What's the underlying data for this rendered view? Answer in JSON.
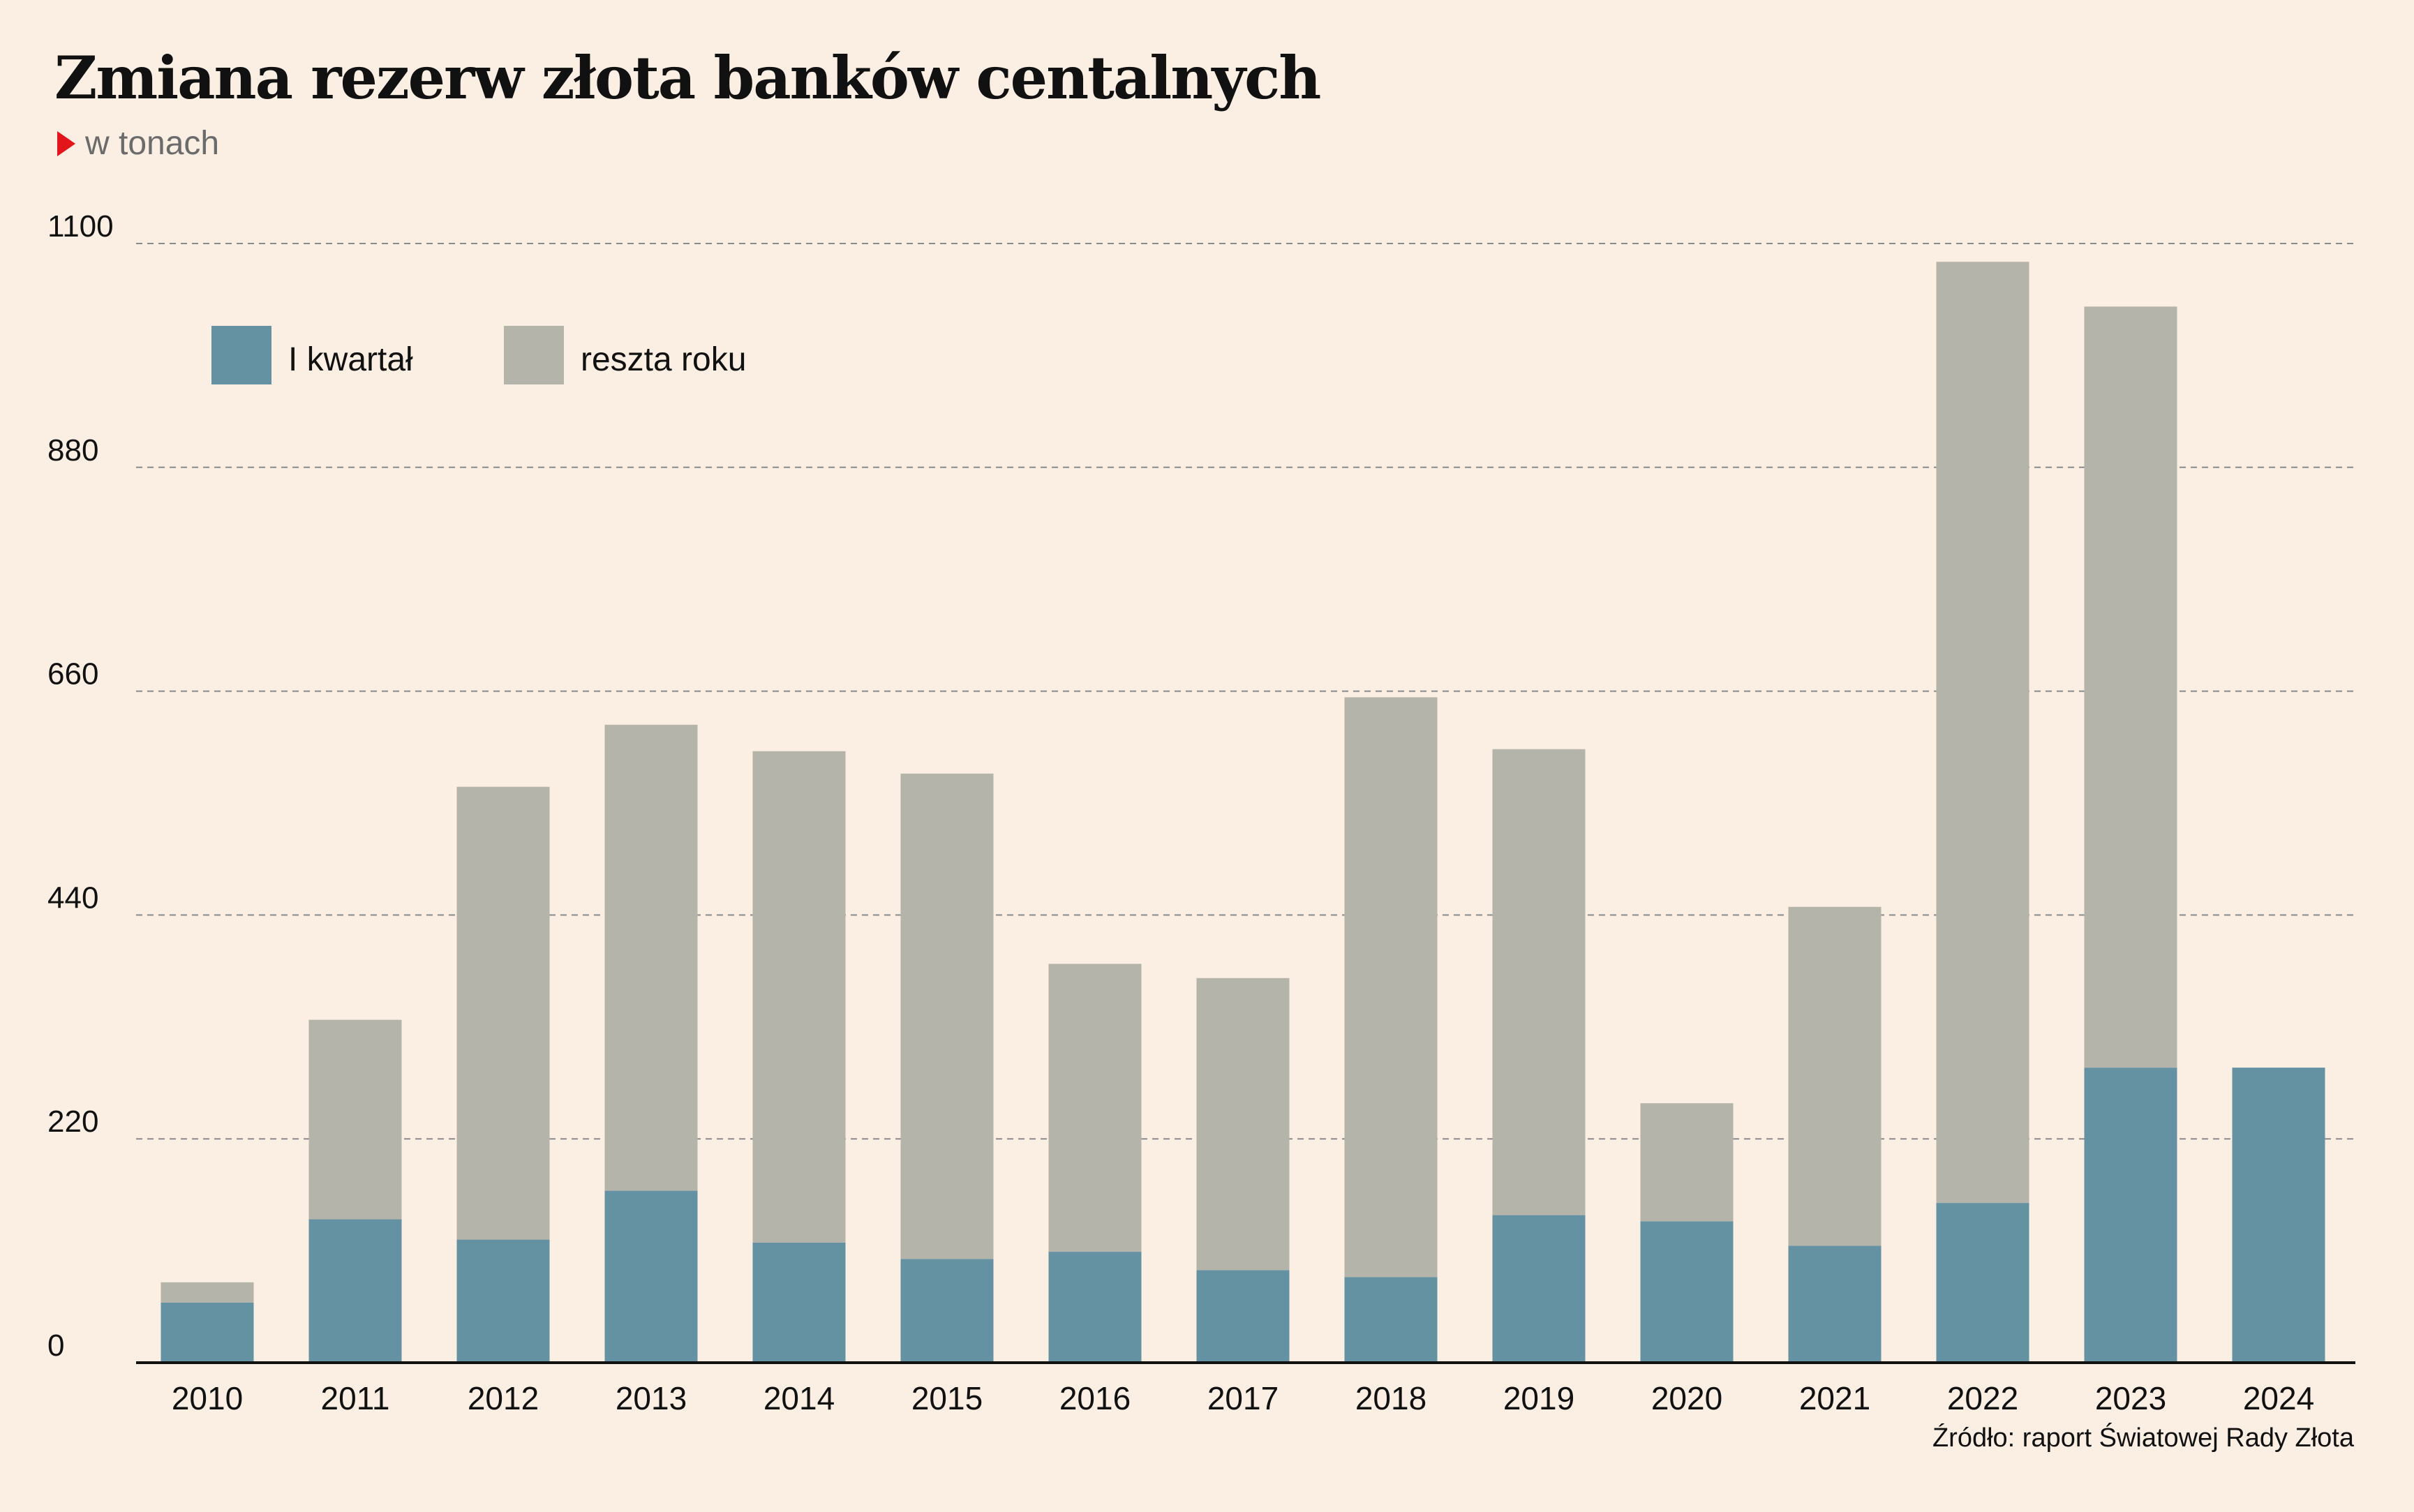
{
  "title": "Zmiana rezerw złota banków centalnych",
  "subtitle": "w tonach",
  "source": "Źródło: raport Światowej Rady Złota",
  "colors": {
    "background": "#fbeee2",
    "q1": "#6592a2",
    "rest": "#b5b4ab",
    "marker": "#e3151a"
  },
  "chart_data": {
    "type": "bar",
    "stacked": true,
    "categories": [
      "2010",
      "2011",
      "2012",
      "2013",
      "2014",
      "2015",
      "2016",
      "2017",
      "2018",
      "2019",
      "2020",
      "2021",
      "2022",
      "2023",
      "2024"
    ],
    "series": [
      {
        "name": "I kwartał",
        "color": "#6592a2",
        "values": [
          59,
          141,
          121,
          169,
          118,
          102,
          109,
          91,
          84,
          145,
          139,
          115,
          157,
          290,
          290
        ]
      },
      {
        "name": "reszta roku",
        "color": "#b5b4ab",
        "values": [
          20,
          196,
          445,
          458,
          483,
          477,
          283,
          287,
          570,
          458,
          116,
          333,
          925,
          748,
          0
        ]
      }
    ],
    "yticks": [
      0,
      220,
      440,
      660,
      880,
      1100
    ],
    "ylim": [
      0,
      1100
    ],
    "grid": true,
    "legend": "top-left"
  }
}
